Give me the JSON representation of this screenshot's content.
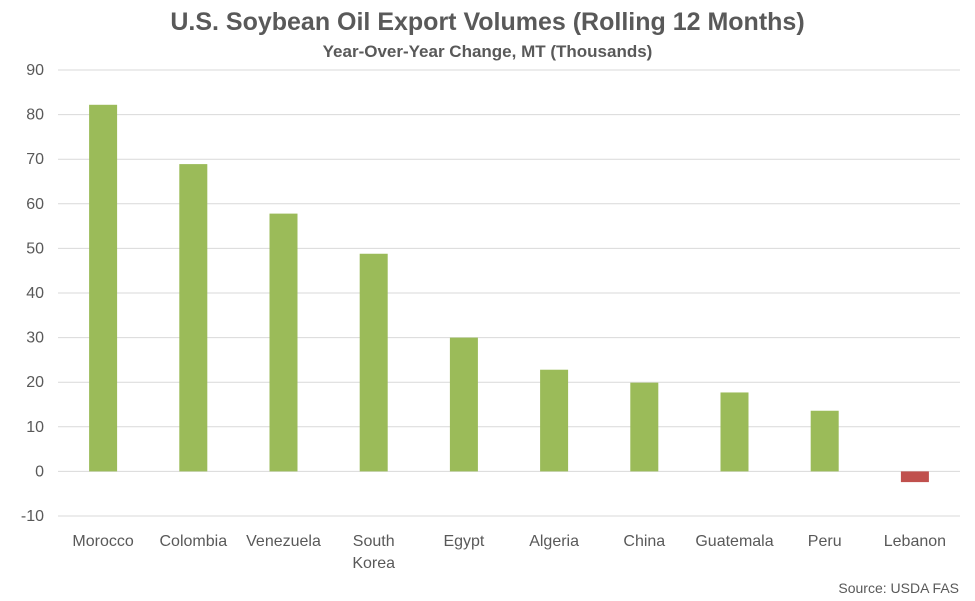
{
  "chart_data": {
    "type": "bar",
    "title": "U.S. Soybean Oil Export Volumes (Rolling 12 Months)",
    "subtitle": "Year-Over-Year Change, MT (Thousands)",
    "source": "Source: USDA FAS",
    "categories": [
      [
        "Morocco"
      ],
      [
        "Colombia"
      ],
      [
        "Venezuela"
      ],
      [
        "South",
        "Korea"
      ],
      [
        "Egypt"
      ],
      [
        "Algeria"
      ],
      [
        "China"
      ],
      [
        "Guatemala"
      ],
      [
        "Peru"
      ],
      [
        "Lebanon"
      ]
    ],
    "values": [
      82.2,
      68.9,
      57.8,
      48.8,
      30.0,
      22.8,
      19.9,
      17.7,
      13.6,
      -2.4
    ],
    "ylim": [
      -10,
      90
    ],
    "yticks": [
      -10,
      0,
      10,
      20,
      30,
      40,
      50,
      60,
      70,
      80,
      90
    ],
    "grid": true,
    "colors": {
      "positive": "#9bbb59",
      "negative": "#c0504d",
      "grid": "#d9d9d9",
      "text": "#595959"
    }
  }
}
